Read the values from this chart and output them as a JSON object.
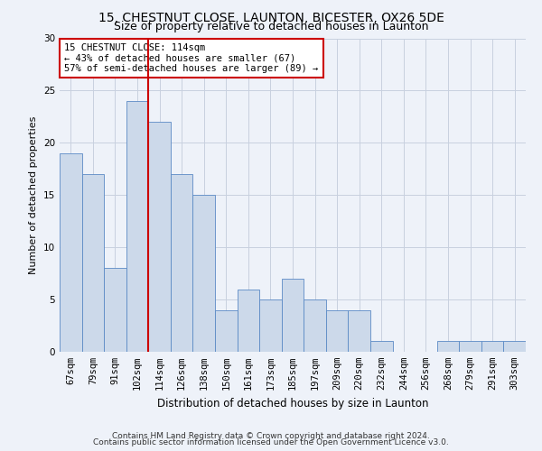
{
  "title1": "15, CHESTNUT CLOSE, LAUNTON, BICESTER, OX26 5DE",
  "title2": "Size of property relative to detached houses in Launton",
  "xlabel": "Distribution of detached houses by size in Launton",
  "ylabel": "Number of detached properties",
  "categories": [
    "67sqm",
    "79sqm",
    "91sqm",
    "102sqm",
    "114sqm",
    "126sqm",
    "138sqm",
    "150sqm",
    "161sqm",
    "173sqm",
    "185sqm",
    "197sqm",
    "209sqm",
    "220sqm",
    "232sqm",
    "244sqm",
    "256sqm",
    "268sqm",
    "279sqm",
    "291sqm",
    "303sqm"
  ],
  "values": [
    19,
    17,
    8,
    24,
    22,
    17,
    15,
    4,
    6,
    5,
    7,
    5,
    4,
    4,
    1,
    0,
    0,
    1,
    1,
    1,
    1
  ],
  "bar_color": "#ccd9ea",
  "bar_edge_color": "#5b8ac5",
  "red_line_color": "#cc0000",
  "annotation_text": "15 CHESTNUT CLOSE: 114sqm\n← 43% of detached houses are smaller (67)\n57% of semi-detached houses are larger (89) →",
  "annotation_box_color": "#ffffff",
  "annotation_box_edge": "#cc0000",
  "ylim": [
    0,
    30
  ],
  "yticks": [
    0,
    5,
    10,
    15,
    20,
    25,
    30
  ],
  "footer1": "Contains HM Land Registry data © Crown copyright and database right 2024.",
  "footer2": "Contains public sector information licensed under the Open Government Licence v3.0.",
  "bg_color": "#eef2f9",
  "plot_bg_color": "#eef2f9",
  "grid_color": "#c8d0df",
  "title1_fontsize": 10,
  "title2_fontsize": 9,
  "xlabel_fontsize": 8.5,
  "ylabel_fontsize": 8,
  "tick_fontsize": 7.5,
  "footer_fontsize": 6.5,
  "annot_fontsize": 7.5,
  "highlight_bar_index": 4
}
